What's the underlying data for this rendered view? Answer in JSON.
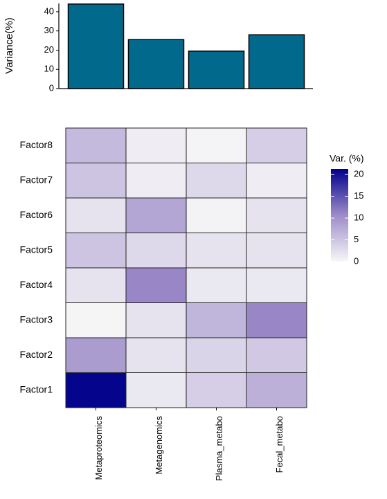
{
  "chart_data": [
    {
      "type": "bar",
      "ylabel": "Variance(%)",
      "values": [
        44,
        25.5,
        19.5,
        28
      ],
      "color": "#016a8c",
      "ylim": [
        0,
        44.3
      ],
      "yticks": [
        0,
        10,
        20,
        30,
        40
      ]
    },
    {
      "type": "heatmap",
      "columns": [
        "Metaproteomics",
        "Metagenomics",
        "Plasma_metabo",
        "Fecal_metabo"
      ],
      "rows": [
        "Factor8",
        "Factor7",
        "Factor6",
        "Factor5",
        "Factor4",
        "Factor3",
        "Factor2",
        "Factor1"
      ],
      "values": [
        [
          6,
          1,
          0.3,
          4
        ],
        [
          5,
          1,
          3,
          1
        ],
        [
          2,
          8,
          0.5,
          2
        ],
        [
          5,
          3,
          2,
          2
        ],
        [
          2,
          11,
          1.5,
          1.5
        ],
        [
          0.2,
          2,
          6.5,
          11
        ],
        [
          9,
          2,
          3.5,
          4.5
        ],
        [
          21,
          1.5,
          4,
          7
        ]
      ],
      "legend_title": "Var. (%)",
      "zlim": [
        0,
        21.3
      ],
      "zticks": [
        0,
        5,
        10,
        15,
        20
      ],
      "colors": [
        "#f7f7f7",
        "#9d8bc9",
        "#00008b"
      ]
    }
  ]
}
